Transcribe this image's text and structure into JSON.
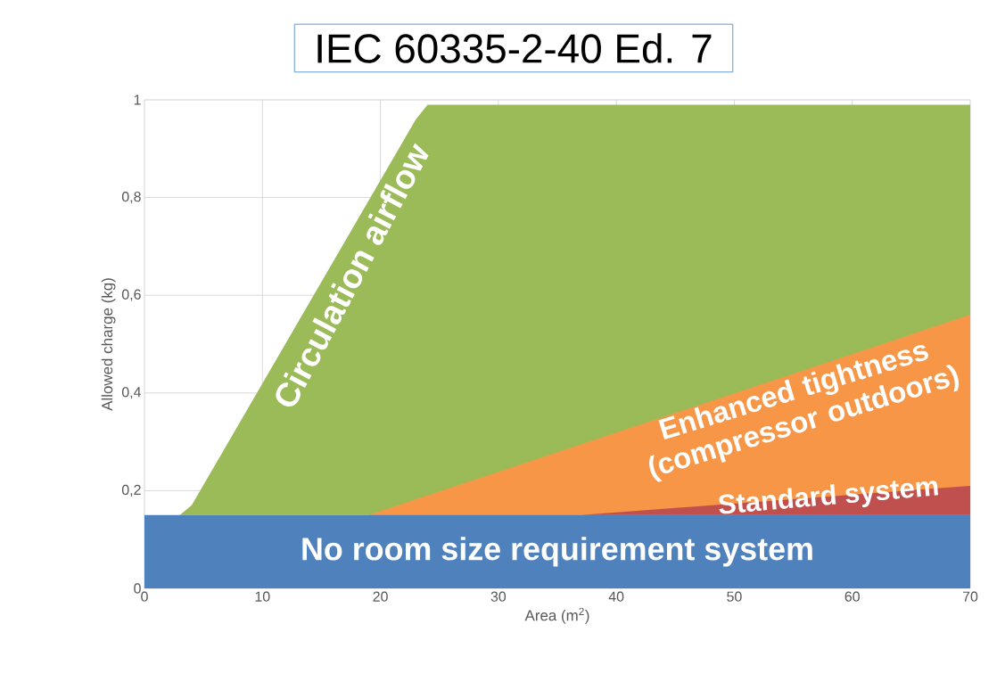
{
  "chart_data": {
    "type": "area",
    "title": "IEC 60335-2-40 Ed. 7",
    "xlabel": "Area (m$^{2}$)",
    "ylabel": "Allowed charge (kg)",
    "series": [
      {
        "name": "Circulation airflow",
        "color": "#9bbb59",
        "x": [
          3,
          4,
          23,
          24,
          70
        ],
        "values": [
          0.15,
          0.17,
          0.96,
          0.99,
          0.99
        ]
      },
      {
        "name": "Enhanced tightness (compressor outdoors)",
        "color": "#f79646",
        "x": [
          19,
          70
        ],
        "values": [
          0.15,
          0.56
        ]
      },
      {
        "name": "Standard system",
        "color": "#c0504d",
        "x": [
          37,
          70
        ],
        "values": [
          0.15,
          0.21
        ]
      },
      {
        "name": "No room size requirement system",
        "color": "#4f81bd",
        "x": [
          0,
          70
        ],
        "values": [
          0.15,
          0.15
        ]
      }
    ],
    "xlim": [
      0,
      70
    ],
    "xticks": [
      0,
      10,
      20,
      30,
      40,
      50,
      60,
      70
    ],
    "ylim": [
      0,
      1
    ],
    "yticks": [
      0,
      {
        "value": 0.2,
        "label": "0,2"
      },
      {
        "value": 0.4,
        "label": "0,4"
      },
      {
        "value": 0.6,
        "label": "0,6"
      },
      {
        "value": 0.8,
        "label": "0,8"
      },
      1
    ],
    "grid": true
  }
}
